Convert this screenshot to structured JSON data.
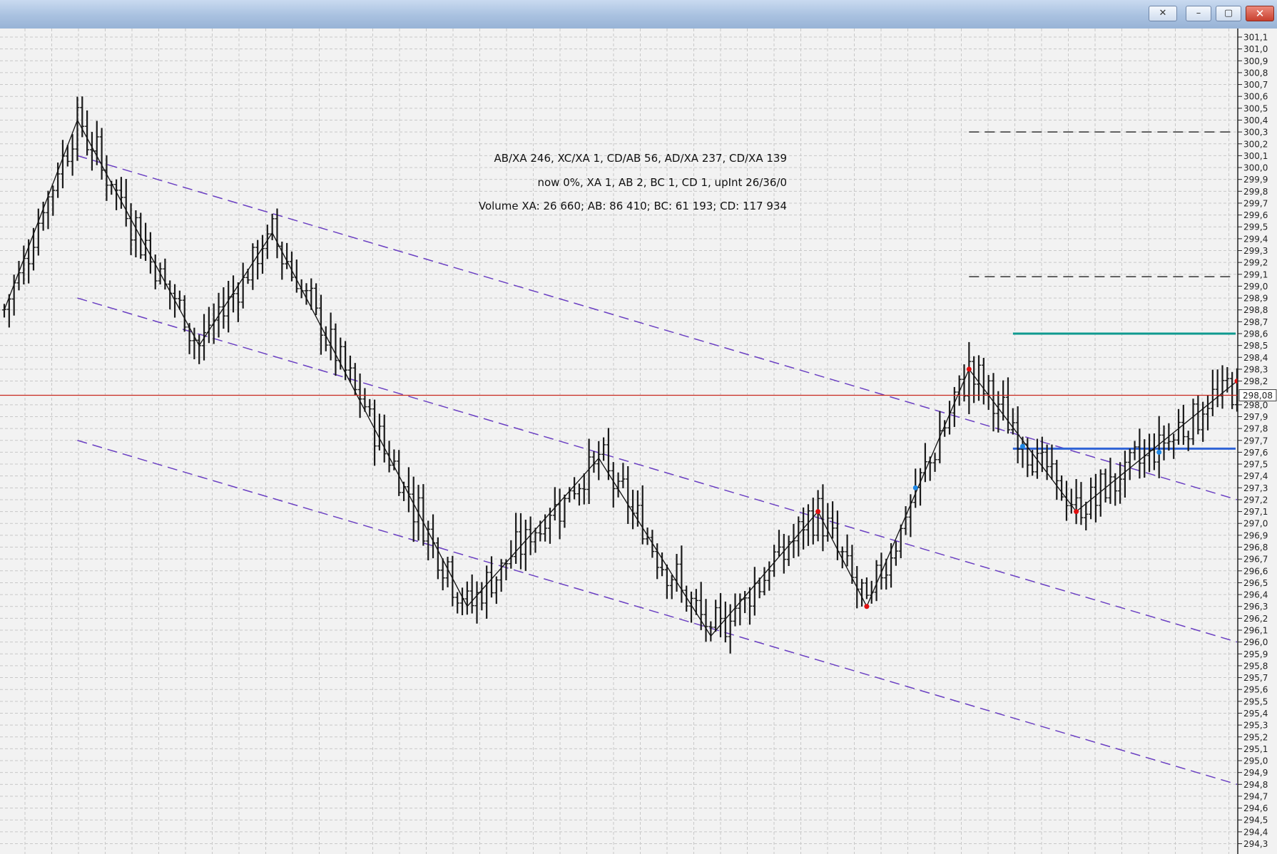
{
  "window": {
    "buttons": [
      {
        "name": "tools-icon",
        "glyph": "✕"
      },
      {
        "name": "minimize-icon",
        "glyph": "–"
      },
      {
        "name": "maximize-icon",
        "glyph": "▢"
      },
      {
        "name": "close-icon",
        "glyph": "✕"
      }
    ]
  },
  "info": {
    "line1": "AB/XA 246, XC/XA 1, CD/AB 56, AD/XA 237, CD/XA 139",
    "line2": "now 0%, XA 1, AB 2, BC 1, CD 1, upInt 26/36/0",
    "line3": "Volume XA: 26 660; AB: 86 410; BC: 61 193; CD: 117 934"
  },
  "price_axis": {
    "ticks": [
      "301,1",
      "301,0",
      "300,9",
      "300,8",
      "300,7",
      "300,6",
      "300,5",
      "300,4",
      "300,3",
      "300,2",
      "300,1",
      "300,0",
      "299,9",
      "299,8",
      "299,7",
      "299,6",
      "299,5",
      "299,4",
      "299,3",
      "299,2",
      "299,1",
      "299,0",
      "298,9",
      "298,8",
      "298,7",
      "298,6",
      "298,5",
      "298,4",
      "298,3",
      "298,2",
      "298,0",
      "297,9",
      "297,8",
      "297,7",
      "297,6",
      "297,5",
      "297,4",
      "297,3",
      "297,2",
      "297,1",
      "297,0",
      "296,9",
      "296,8",
      "296,7",
      "296,6",
      "296,5",
      "296,4",
      "296,3",
      "296,2",
      "296,1",
      "296,0",
      "295,9",
      "295,8",
      "295,7",
      "295,6",
      "295,5",
      "295,4",
      "295,3",
      "295,2",
      "295,1",
      "295,0",
      "294,9",
      "294,8",
      "294,7",
      "294,6",
      "294,5",
      "294,4",
      "294,3"
    ],
    "current_price": "298,08"
  },
  "chart_data": {
    "type": "bar",
    "y_range": [
      294.2,
      301.2
    ],
    "current_price": 298.08,
    "zigzag": [
      {
        "bar": 0,
        "price": 298.8
      },
      {
        "bar": 15,
        "price": 300.4
      },
      {
        "bar": 40,
        "price": 298.5
      },
      {
        "bar": 55,
        "price": 299.45
      },
      {
        "bar": 95,
        "price": 296.3
      },
      {
        "bar": 122,
        "price": 297.55
      },
      {
        "bar": 145,
        "price": 296.05
      },
      {
        "bar": 167,
        "price": 297.1
      },
      {
        "bar": 177,
        "price": 296.3
      },
      {
        "bar": 198,
        "price": 298.3
      },
      {
        "bar": 220,
        "price": 297.1
      },
      {
        "bar": 253,
        "price": 298.2
      }
    ],
    "pattern_points": [
      {
        "bar": 167,
        "price": 297.1,
        "color": "#e01010"
      },
      {
        "bar": 177,
        "price": 296.3,
        "color": "#e01010"
      },
      {
        "bar": 187,
        "price": 297.3,
        "color": "#1e88e5"
      },
      {
        "bar": 198,
        "price": 298.3,
        "color": "#e01010"
      },
      {
        "bar": 209,
        "price": 297.65,
        "color": "#1e88e5"
      },
      {
        "bar": 220,
        "price": 297.1,
        "color": "#e01010"
      },
      {
        "bar": 237,
        "price": 297.6,
        "color": "#1e88e5"
      },
      {
        "bar": 253,
        "price": 298.2,
        "color": "#e01010"
      }
    ],
    "channels": [
      {
        "from": {
          "bar": 15,
          "price": 300.1
        },
        "to": {
          "bar": 253,
          "price": 297.2
        }
      },
      {
        "from": {
          "bar": 15,
          "price": 298.9
        },
        "to": {
          "bar": 253,
          "price": 296.0
        }
      },
      {
        "from": {
          "bar": 15,
          "price": 297.7
        },
        "to": {
          "bar": 253,
          "price": 294.8
        }
      }
    ],
    "levels": [
      {
        "price": 300.3,
        "from_bar": 198,
        "style": "dash",
        "color": "#333333"
      },
      {
        "price": 299.08,
        "from_bar": 198,
        "style": "dash",
        "color": "#333333"
      },
      {
        "price": 298.6,
        "from_bar": 207,
        "style": "solid",
        "color": "#0f9a8f"
      },
      {
        "price": 297.63,
        "from_bar": 207,
        "style": "solid",
        "color": "#2f63d6"
      }
    ],
    "colors": {
      "bars": "#1a1a1a",
      "channel": "#6a3fc2",
      "current_price_line": "#c8281e",
      "grid": "#c8c8c8"
    }
  }
}
